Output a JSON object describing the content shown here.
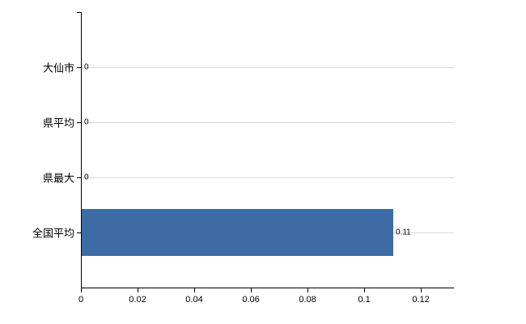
{
  "chart_data": {
    "type": "bar",
    "orientation": "horizontal",
    "categories": [
      "大仙市",
      "県平均",
      "県最大",
      "全国平均"
    ],
    "values": [
      0,
      0,
      0,
      0.11
    ],
    "value_labels": [
      "0",
      "0",
      "0",
      "0.11"
    ],
    "x_ticks": [
      0,
      0.02,
      0.04,
      0.06,
      0.08,
      0.1,
      0.12
    ],
    "x_tick_labels": [
      "0",
      "0.02",
      "0.04",
      "0.06",
      "0.08",
      "0.1",
      "0.12"
    ],
    "xlim": [
      0,
      0.1314
    ],
    "title": "",
    "xlabel": "",
    "ylabel": "",
    "grid": "horizontal",
    "legend": "none",
    "colors": {
      "bar": "#3d6ca5",
      "gridline": "#d9d9d9",
      "axis": "#000000",
      "text": "#000000",
      "background": "#ffffff"
    }
  }
}
